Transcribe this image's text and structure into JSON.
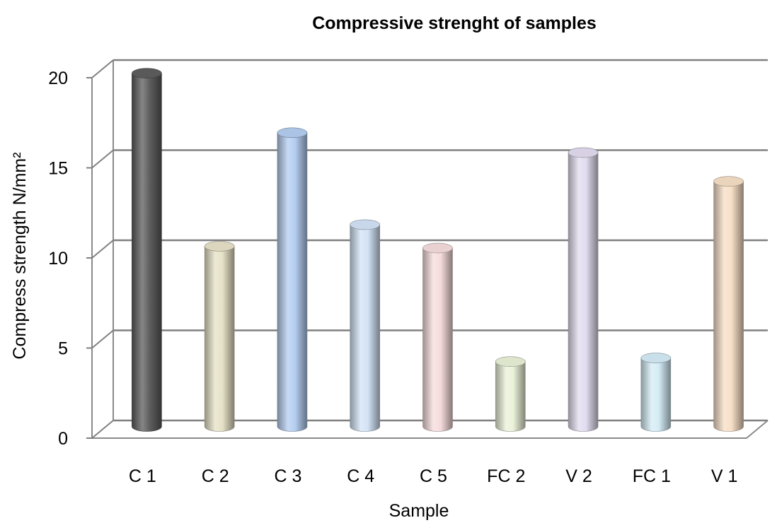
{
  "chart_data": {
    "type": "bar",
    "title": "Compressive strenght of samples",
    "xlabel": "Sample",
    "ylabel": "Compress strength N/mm²",
    "categories": [
      "C 1",
      "C 2",
      "C 3",
      "C 4",
      "C 5",
      "FC 2",
      "V 2",
      "FC 1",
      "V 1"
    ],
    "values": [
      19.6,
      10.0,
      16.3,
      11.2,
      9.9,
      3.6,
      15.2,
      3.8,
      13.6
    ],
    "ylim": [
      0,
      20
    ],
    "yticks": [
      0,
      5,
      10,
      15,
      20
    ],
    "grid": true,
    "bar_colors": [
      "#5e5e5e",
      "#e6e1c7",
      "#b4cdf0",
      "#d3e3f6",
      "#f6dcdc",
      "#eaf1d8",
      "#e2dcef",
      "#d4ecf6",
      "#f7dfc6"
    ]
  }
}
